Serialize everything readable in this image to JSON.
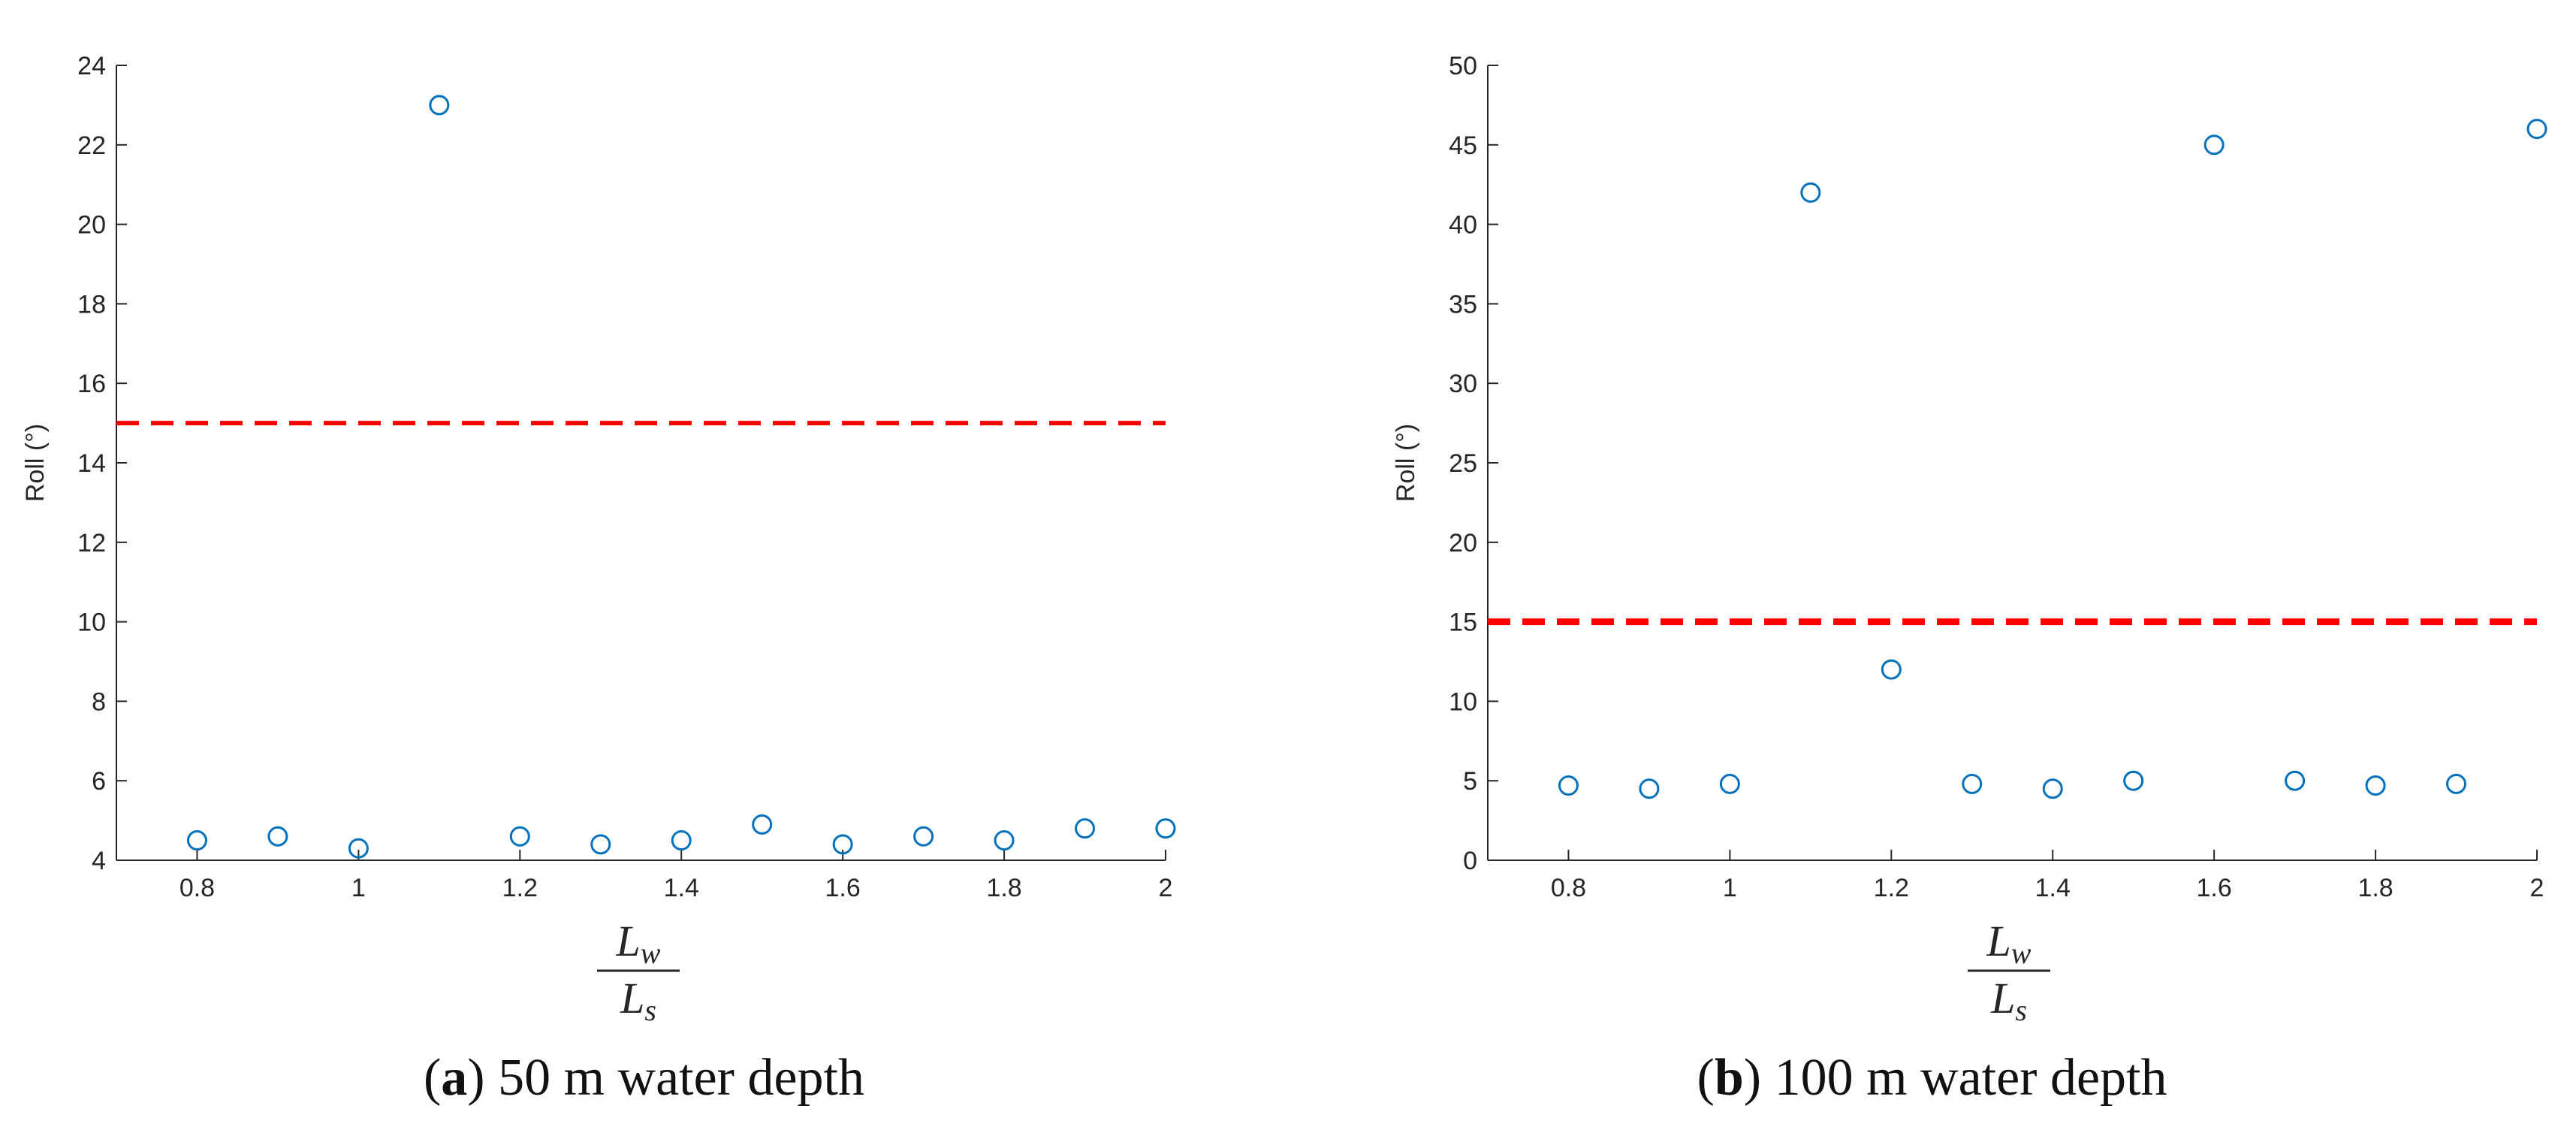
{
  "colors": {
    "marker": "#0072BD",
    "threshold": "#FF0000",
    "axis": "#262626"
  },
  "chart_data": [
    {
      "type": "scatter",
      "caption_letter": "a",
      "caption_rest": " 50 m water depth",
      "ylabel": "Roll (°)",
      "xlabel_num_main": "L",
      "xlabel_num_sub": "w",
      "xlabel_den_main": "L",
      "xlabel_den_sub": "s",
      "xlim": [
        0.7,
        2.0
      ],
      "ylim": [
        4,
        24
      ],
      "xticks": [
        0.8,
        1,
        1.2,
        1.4,
        1.6,
        1.8,
        2
      ],
      "xtick_labels": [
        "0.8",
        "1",
        "1.2",
        "1.4",
        "1.6",
        "1.8",
        "2"
      ],
      "yticks": [
        4,
        6,
        8,
        10,
        12,
        14,
        16,
        18,
        20,
        22,
        24
      ],
      "ytick_labels": [
        "4",
        "6",
        "8",
        "10",
        "12",
        "14",
        "16",
        "18",
        "20",
        "22",
        "24"
      ],
      "threshold": 15,
      "series": [
        {
          "x": [
            0.8,
            0.9,
            1.0,
            1.1,
            1.2,
            1.3,
            1.4,
            1.5,
            1.6,
            1.7,
            1.8,
            1.9,
            2.0
          ],
          "y": [
            4.5,
            4.6,
            4.3,
            23.0,
            4.6,
            4.4,
            4.5,
            4.9,
            4.4,
            4.6,
            4.5,
            4.8,
            4.8
          ]
        }
      ]
    },
    {
      "type": "scatter",
      "caption_letter": "b",
      "caption_rest": " 100 m water depth",
      "ylabel": "Roll (°)",
      "xlabel_num_main": "L",
      "xlabel_num_sub": "w",
      "xlabel_den_main": "L",
      "xlabel_den_sub": "s",
      "xlim": [
        0.7,
        2.0
      ],
      "ylim": [
        0,
        50
      ],
      "xticks": [
        0.8,
        1,
        1.2,
        1.4,
        1.6,
        1.8,
        2
      ],
      "xtick_labels": [
        "0.8",
        "1",
        "1.2",
        "1.4",
        "1.6",
        "1.8",
        "2"
      ],
      "yticks": [
        0,
        5,
        10,
        15,
        20,
        25,
        30,
        35,
        40,
        45,
        50
      ],
      "ytick_labels": [
        "0",
        "5",
        "10",
        "15",
        "20",
        "25",
        "30",
        "35",
        "40",
        "45",
        "50"
      ],
      "threshold": 15,
      "series": [
        {
          "x": [
            0.8,
            0.9,
            1.0,
            1.1,
            1.2,
            1.3,
            1.4,
            1.5,
            1.6,
            1.7,
            1.8,
            1.9,
            2.0
          ],
          "y": [
            4.7,
            4.5,
            4.8,
            42.0,
            12.0,
            4.8,
            4.5,
            5.0,
            45.0,
            5.0,
            4.7,
            4.8,
            46.0
          ]
        }
      ]
    }
  ]
}
